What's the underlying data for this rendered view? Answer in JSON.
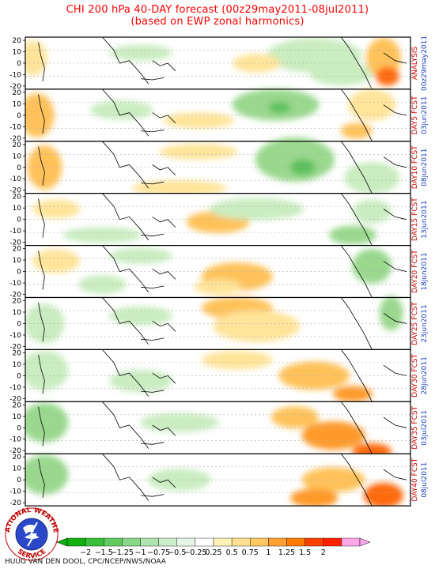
{
  "title": {
    "line1": "CHI 200 hPa 40-DAY forecast (00z29may2011-08jul2011)",
    "line2": "(based on EWP zonal harmonics)"
  },
  "lat_ticks": [
    "20",
    "10",
    "0",
    "-10",
    "-20"
  ],
  "panels": [
    {
      "label": "ANALYSIS",
      "date": "00z29may2011"
    },
    {
      "label": "DAY5 FCST",
      "date": "03jun2011"
    },
    {
      "label": "DAY10 FCST",
      "date": "08jun2011"
    },
    {
      "label": "DAY15 FCST",
      "date": "13jun2011"
    },
    {
      "label": "DAY20 FCST",
      "date": "18jun2011"
    },
    {
      "label": "DAY25 FCST",
      "date": "23jun2011"
    },
    {
      "label": "DAY30 FCST",
      "date": "28jun2011"
    },
    {
      "label": "DAY35 FCST",
      "date": "03jul2011"
    },
    {
      "label": "DAY40 FCST",
      "date": "08jul2011"
    }
  ],
  "legend": {
    "labels": [
      "−2",
      "−1.5",
      "−1.25",
      "−1",
      "−0.75",
      "−0.5",
      "−0.25",
      "0.25",
      "0.5",
      "0.75",
      "1",
      "1.25",
      "1.5",
      "2"
    ],
    "colors": [
      "#10b010",
      "#38c038",
      "#60cc60",
      "#88d888",
      "#aee4ae",
      "#cdeecd",
      "#e6f6e6",
      "#ffffff",
      "#fff2b8",
      "#ffe090",
      "#ffc860",
      "#ffa030",
      "#ff7800",
      "#ff4000",
      "#ff2000",
      "#ffa6e8"
    ]
  },
  "colors": {
    "title": "#ff0000",
    "side_label": "#cc0000",
    "side_date": "#1f3fbf"
  },
  "logo": {
    "top_text": "NATIONAL WEATHER",
    "bottom_text": "SERVICE"
  },
  "footer": "HUUG VAN DEN DOOL, CPC/NCEP/NWS/NOAA"
}
